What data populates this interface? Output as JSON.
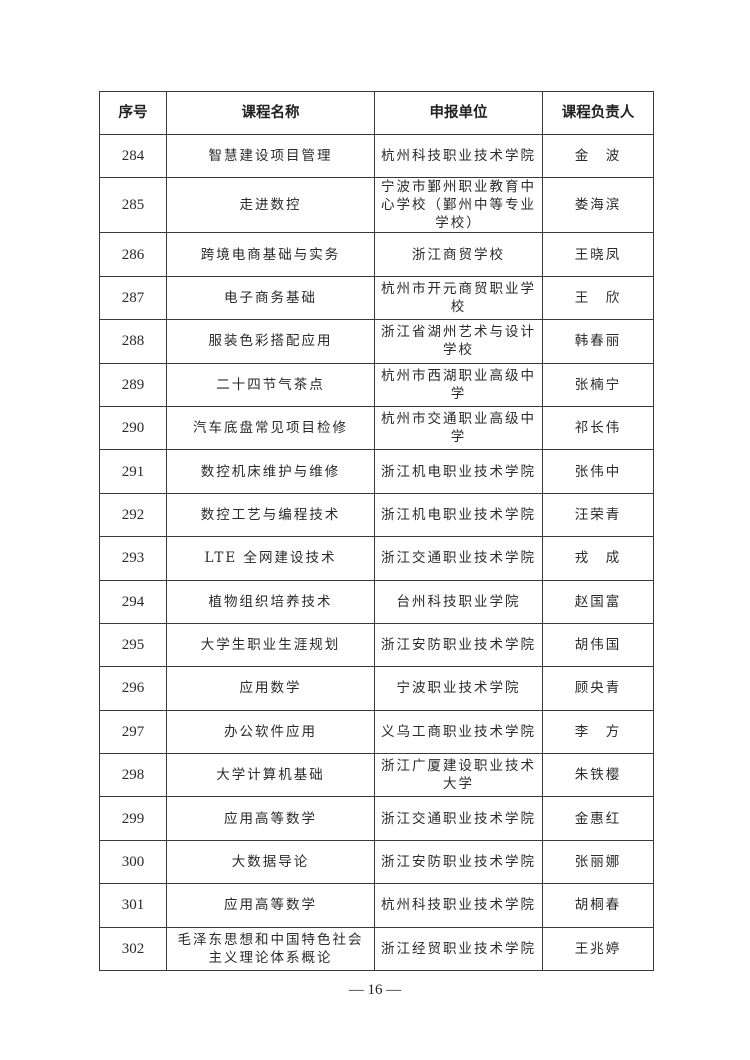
{
  "table": {
    "headers": [
      "序号",
      "课程名称",
      "申报单位",
      "课程负责人"
    ],
    "rows": [
      {
        "no": "284",
        "course": "智慧建设项目管理",
        "unit": "杭州科技职业技术学院",
        "leader": "金　波"
      },
      {
        "no": "285",
        "course": "走进数控",
        "unit": "宁波市鄞州职业教育中心学校（鄞州中等专业学校）",
        "leader": "娄海滨"
      },
      {
        "no": "286",
        "course": "跨境电商基础与实务",
        "unit": "浙江商贸学校",
        "leader": "王晓凤"
      },
      {
        "no": "287",
        "course": "电子商务基础",
        "unit": "杭州市开元商贸职业学校",
        "leader": "王　欣"
      },
      {
        "no": "288",
        "course": "服装色彩搭配应用",
        "unit": "浙江省湖州艺术与设计学校",
        "leader": "韩春丽"
      },
      {
        "no": "289",
        "course": "二十四节气茶点",
        "unit": "杭州市西湖职业高级中学",
        "leader": "张楠宁"
      },
      {
        "no": "290",
        "course": "汽车底盘常见项目检修",
        "unit": "杭州市交通职业高级中学",
        "leader": "祁长伟"
      },
      {
        "no": "291",
        "course": "数控机床维护与维修",
        "unit": "浙江机电职业技术学院",
        "leader": "张伟中"
      },
      {
        "no": "292",
        "course": "数控工艺与编程技术",
        "unit": "浙江机电职业技术学院",
        "leader": "汪荣青"
      },
      {
        "no": "293",
        "course": "LTE 全网建设技术",
        "unit": "浙江交通职业技术学院",
        "leader": "戎　成"
      },
      {
        "no": "294",
        "course": "植物组织培养技术",
        "unit": "台州科技职业学院",
        "leader": "赵国富"
      },
      {
        "no": "295",
        "course": "大学生职业生涯规划",
        "unit": "浙江安防职业技术学院",
        "leader": "胡伟国"
      },
      {
        "no": "296",
        "course": "应用数学",
        "unit": "宁波职业技术学院",
        "leader": "顾央青"
      },
      {
        "no": "297",
        "course": "办公软件应用",
        "unit": "义乌工商职业技术学院",
        "leader": "李　方"
      },
      {
        "no": "298",
        "course": "大学计算机基础",
        "unit": "浙江广厦建设职业技术大学",
        "leader": "朱铁樱"
      },
      {
        "no": "299",
        "course": "应用高等数学",
        "unit": "浙江交通职业技术学院",
        "leader": "金惠红"
      },
      {
        "no": "300",
        "course": "大数据导论",
        "unit": "浙江安防职业技术学院",
        "leader": "张丽娜"
      },
      {
        "no": "301",
        "course": "应用高等数学",
        "unit": "杭州科技职业技术学院",
        "leader": "胡桐春"
      },
      {
        "no": "302",
        "course": "毛泽东思想和中国特色社会主义理论体系概论",
        "unit": "浙江经贸职业技术学院",
        "leader": "王兆婷"
      }
    ]
  },
  "footer": {
    "page_number": "— 16 —"
  }
}
